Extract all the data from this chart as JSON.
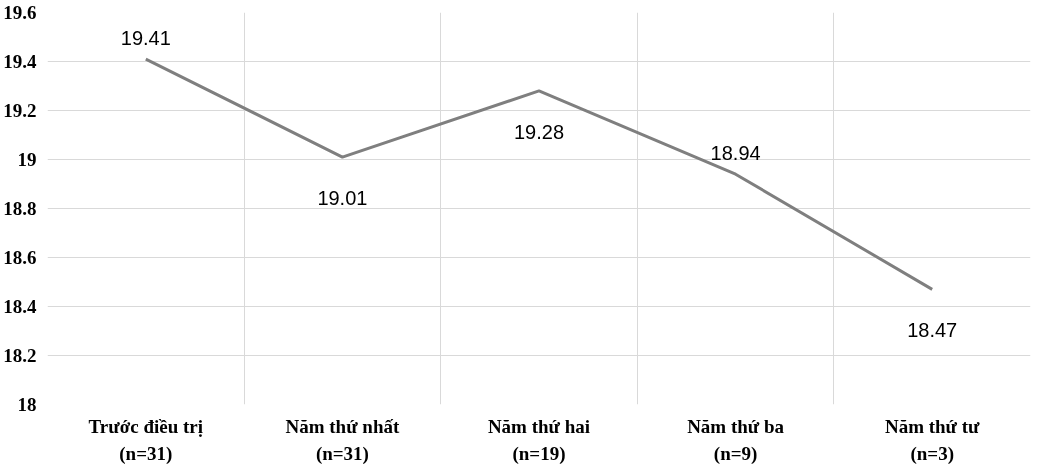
{
  "chart_data": {
    "type": "line",
    "categories": [
      "Trước điều trị\n(n=31)",
      "Năm thứ nhất\n(n=31)",
      "Năm thứ hai\n(n=19)",
      "Năm thứ ba\n(n=9)",
      "Năm thứ tư\n(n=3)"
    ],
    "series": [
      {
        "color": "#7f7f7f",
        "values": [
          19.41,
          19.01,
          19.28,
          18.94,
          18.47
        ]
      }
    ],
    "ylim": [
      18,
      19.6
    ],
    "yticks": [
      18,
      18.2,
      18.4,
      18.6,
      18.8,
      19,
      19.2,
      19.4,
      19.6
    ],
    "grid": true,
    "data_labels": true,
    "marker": "none",
    "line_style": "solid"
  }
}
